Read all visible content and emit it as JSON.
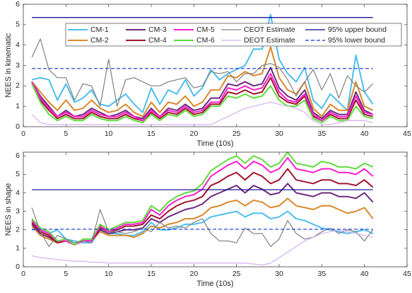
{
  "chart_data": [
    {
      "type": "line",
      "ylabel": "NEES in kinematic",
      "xlabel": "Time (10s)",
      "xlim": [
        0,
        45
      ],
      "xticks": [
        0,
        5,
        10,
        15,
        20,
        25,
        30,
        35,
        40,
        45
      ],
      "ylim": [
        0,
        6
      ],
      "yticks": [
        0,
        1,
        2,
        3,
        4,
        5,
        6
      ],
      "legend": "north-east",
      "grid": false,
      "x": [
        1,
        2,
        3,
        4,
        5,
        6,
        7,
        8,
        9,
        10,
        11,
        12,
        13,
        14,
        15,
        16,
        17,
        18,
        19,
        20,
        21,
        22,
        23,
        24,
        25,
        26,
        27,
        28,
        29,
        30,
        31,
        32,
        33,
        34,
        35,
        36,
        37,
        38,
        39,
        40,
        41
      ],
      "series": [
        {
          "name": "CM-1",
          "color": "#4dbeee",
          "values": [
            2.3,
            2.4,
            2.3,
            1.3,
            2.1,
            1.2,
            1.4,
            1.8,
            1.1,
            1.0,
            1.3,
            1.6,
            1.1,
            0.7,
            1.9,
            1.1,
            1.8,
            1.6,
            2.3,
            1.5,
            1.9,
            2.8,
            2.3,
            2.6,
            2.8,
            3.0,
            3.8,
            3.8,
            5.5,
            3.3,
            2.6,
            2.2,
            2.9,
            1.3,
            0.9,
            1.6,
            1.2,
            0.8,
            3.5,
            1.7,
            1.1
          ]
        },
        {
          "name": "CM-2",
          "color": "#d9892b",
          "values": [
            2.2,
            1.7,
            1.2,
            0.8,
            1.3,
            0.8,
            0.9,
            1.3,
            0.9,
            0.7,
            0.8,
            1.1,
            0.7,
            0.5,
            1.2,
            0.7,
            1.2,
            1.1,
            1.5,
            1.0,
            1.2,
            1.8,
            1.8,
            2.5,
            2.4,
            2.7,
            2.5,
            2.6,
            3.9,
            2.4,
            1.8,
            1.6,
            2.2,
            0.9,
            0.5,
            1.1,
            0.8,
            0.8,
            2.2,
            1.0,
            0.8
          ]
        },
        {
          "name": "CM-3",
          "color": "#6e2a7e",
          "values": [
            2.2,
            1.5,
            1.0,
            0.5,
            0.8,
            0.5,
            0.6,
            0.9,
            0.7,
            0.5,
            0.6,
            0.8,
            0.5,
            0.4,
            0.9,
            0.5,
            0.9,
            0.8,
            1.1,
            0.8,
            0.9,
            1.4,
            1.4,
            2.1,
            2.0,
            2.2,
            2.0,
            2.1,
            2.9,
            1.9,
            1.5,
            1.3,
            1.8,
            0.7,
            0.4,
            0.8,
            0.6,
            0.6,
            1.7,
            0.8,
            0.6
          ]
        },
        {
          "name": "CM-4",
          "color": "#a2142f",
          "values": [
            2.2,
            1.3,
            0.8,
            0.4,
            0.6,
            0.4,
            0.4,
            0.7,
            0.5,
            0.4,
            0.4,
            0.6,
            0.4,
            0.3,
            0.7,
            0.4,
            0.7,
            0.6,
            0.9,
            0.6,
            0.7,
            1.1,
            1.1,
            1.7,
            1.6,
            1.8,
            1.6,
            1.7,
            2.4,
            1.5,
            1.2,
            1.1,
            1.5,
            0.5,
            0.3,
            0.6,
            0.4,
            0.4,
            1.3,
            0.6,
            0.5
          ]
        },
        {
          "name": "CM-5",
          "color": "#ff1fd0",
          "values": [
            2.2,
            1.4,
            0.9,
            0.5,
            0.7,
            0.5,
            0.5,
            0.8,
            0.6,
            0.5,
            0.5,
            0.7,
            0.5,
            0.3,
            0.8,
            0.5,
            0.8,
            0.7,
            1.0,
            0.7,
            0.8,
            1.2,
            1.2,
            1.9,
            1.8,
            2.0,
            1.8,
            1.9,
            2.6,
            1.7,
            1.3,
            1.2,
            1.6,
            0.6,
            0.3,
            0.7,
            0.5,
            0.5,
            1.5,
            0.7,
            0.6
          ]
        },
        {
          "name": "CM-6",
          "color": "#5fdc3c",
          "values": [
            2.1,
            1.2,
            0.6,
            0.3,
            0.5,
            0.3,
            0.3,
            0.6,
            0.4,
            0.3,
            0.3,
            0.5,
            0.3,
            0.2,
            0.6,
            0.3,
            0.6,
            0.5,
            0.8,
            0.5,
            0.6,
            1.0,
            1.0,
            1.5,
            1.4,
            1.6,
            1.4,
            1.5,
            2.0,
            1.3,
            1.0,
            1.0,
            1.3,
            0.4,
            0.2,
            0.5,
            0.3,
            0.3,
            1.0,
            0.5,
            0.4
          ]
        },
        {
          "name": "CEOT Estimate",
          "color": "#808080",
          "values": [
            3.4,
            4.3,
            2.8,
            2.4,
            2.4,
            1.3,
            2.1,
            2.0,
            1.0,
            3.3,
            1.0,
            2.3,
            2.4,
            2.2,
            2.0,
            2.0,
            2.2,
            2.3,
            2.4,
            1.9,
            2.0,
            2.7,
            2.6,
            2.7,
            2.2,
            2.6,
            2.6,
            3.0,
            3.1,
            2.9,
            2.3,
            1.5,
            2.2,
            2.8,
            1.8,
            2.6,
            1.4,
            2.5,
            2.0,
            1.7,
            2.1
          ]
        },
        {
          "name": "DEOT Estimate",
          "color": "#d4b0f2",
          "values": [
            0.6,
            0.2,
            0.1,
            0.1,
            0.1,
            0.1,
            0.1,
            0.1,
            0.1,
            0.1,
            0.1,
            0.1,
            0.1,
            0.1,
            0.1,
            0.1,
            0.1,
            0.1,
            0.1,
            0.1,
            0.1,
            0.1,
            0.3,
            0.5,
            0.7,
            0.9,
            1.0,
            1.1,
            1.2,
            1.1,
            1.0,
            0.9,
            0.7,
            0.3,
            0.1,
            0.1,
            0.2,
            0.3,
            0.3,
            0.3,
            0.2
          ]
        },
        {
          "name": "95% upper bound",
          "color": "#00008b",
          "x": [
            1,
            41
          ],
          "values": [
            5.35,
            5.35
          ]
        },
        {
          "name": "95% lower bound",
          "color": "#1530d0",
          "dash": "dashed",
          "x": [
            1,
            41
          ],
          "values": [
            2.85,
            2.85
          ]
        }
      ]
    },
    {
      "type": "line",
      "ylabel": "NEES in shape",
      "xlabel": "Time (10s)",
      "xlim": [
        0,
        45
      ],
      "xticks": [
        0,
        5,
        10,
        15,
        20,
        25,
        30,
        35,
        40,
        45
      ],
      "ylim": [
        0,
        6.2
      ],
      "yticks": [
        0,
        1,
        2,
        3,
        4,
        5,
        6
      ],
      "grid": false,
      "x": [
        1,
        2,
        3,
        4,
        5,
        6,
        7,
        8,
        9,
        10,
        11,
        12,
        13,
        14,
        15,
        16,
        17,
        18,
        19,
        20,
        21,
        22,
        23,
        24,
        25,
        26,
        27,
        28,
        29,
        30,
        31,
        32,
        33,
        34,
        35,
        36,
        37,
        38,
        39,
        40,
        41
      ],
      "series": [
        {
          "color": "#4dbeee",
          "values": [
            2.0,
            2.0,
            1.8,
            2.0,
            1.5,
            1.4,
            1.3,
            1.3,
            2.0,
            1.8,
            1.8,
            1.7,
            1.7,
            1.9,
            2.4,
            2.0,
            2.0,
            2.1,
            2.3,
            2.3,
            2.4,
            2.7,
            2.8,
            2.9,
            3.0,
            2.7,
            2.9,
            2.9,
            2.6,
            2.7,
            3.0,
            2.6,
            2.5,
            2.3,
            2.1,
            2.0,
            1.9,
            1.8,
            1.9,
            2.0,
            1.8
          ]
        },
        {
          "color": "#d9892b",
          "values": [
            2.2,
            1.7,
            1.5,
            1.3,
            1.4,
            1.2,
            1.4,
            1.4,
            1.9,
            1.7,
            1.7,
            1.7,
            1.6,
            1.8,
            2.2,
            2.1,
            2.3,
            2.4,
            2.6,
            2.6,
            2.8,
            3.2,
            3.3,
            3.5,
            3.6,
            3.3,
            3.6,
            3.5,
            3.2,
            3.3,
            3.7,
            3.3,
            3.2,
            3.1,
            3.3,
            3.3,
            3.1,
            2.9,
            3.0,
            3.2,
            2.6
          ]
        },
        {
          "color": "#6e2a7e",
          "values": [
            2.3,
            1.8,
            1.6,
            1.3,
            1.4,
            1.2,
            1.4,
            1.4,
            2.0,
            1.8,
            1.9,
            2.0,
            2.0,
            2.1,
            2.6,
            2.4,
            2.7,
            2.9,
            3.1,
            3.2,
            3.4,
            3.8,
            4.0,
            4.2,
            4.4,
            4.0,
            4.4,
            4.2,
            3.9,
            4.0,
            4.5,
            4.0,
            3.9,
            3.8,
            4.0,
            4.0,
            3.8,
            3.8,
            3.7,
            4.0,
            3.5
          ]
        },
        {
          "color": "#a2142f",
          "values": [
            2.4,
            1.9,
            1.7,
            1.3,
            1.4,
            1.2,
            1.4,
            1.4,
            2.1,
            1.9,
            2.0,
            2.2,
            2.2,
            2.3,
            2.8,
            2.6,
            3.0,
            3.3,
            3.5,
            3.6,
            3.8,
            4.4,
            4.6,
            4.9,
            5.1,
            4.7,
            5.1,
            4.9,
            4.5,
            4.7,
            5.3,
            4.7,
            4.6,
            4.5,
            4.7,
            4.7,
            4.5,
            4.5,
            4.4,
            4.7,
            4.3
          ]
        },
        {
          "color": "#ff1fd0",
          "values": [
            2.5,
            2.0,
            1.8,
            1.4,
            1.4,
            1.2,
            1.4,
            1.4,
            2.2,
            1.9,
            2.1,
            2.3,
            2.3,
            2.4,
            3.1,
            2.8,
            3.3,
            3.6,
            3.8,
            3.9,
            4.2,
            4.9,
            5.2,
            5.5,
            5.7,
            5.3,
            5.7,
            5.5,
            5.1,
            5.3,
            5.9,
            5.3,
            5.2,
            5.1,
            5.3,
            5.3,
            5.1,
            5.1,
            5.0,
            5.3,
            4.9
          ]
        },
        {
          "color": "#5fdc3c",
          "values": [
            2.6,
            2.1,
            1.9,
            1.4,
            1.5,
            1.2,
            1.5,
            1.5,
            2.3,
            2.0,
            2.2,
            2.4,
            2.4,
            2.5,
            3.3,
            3.0,
            3.5,
            3.8,
            4.0,
            4.1,
            4.5,
            5.2,
            5.5,
            5.8,
            6.0,
            5.6,
            6.0,
            5.8,
            5.4,
            5.6,
            6.2,
            5.6,
            5.5,
            5.4,
            5.7,
            5.6,
            5.4,
            5.4,
            5.3,
            5.6,
            5.4
          ]
        },
        {
          "color": "#808080",
          "values": [
            3.2,
            1.9,
            1.1,
            1.7,
            1.5,
            1.3,
            1.4,
            1.3,
            3.1,
            1.9,
            1.9,
            1.8,
            1.9,
            2.1,
            1.9,
            2.4,
            2.1,
            2.2,
            2.1,
            2.4,
            2.6,
            1.8,
            1.4,
            1.4,
            1.3,
            2.1,
            1.8,
            1.8,
            1.1,
            1.5,
            2.5,
            1.8,
            1.5,
            1.6,
            1.9,
            2.1,
            1.8,
            2.0,
            1.9,
            1.4,
            2.0
          ]
        },
        {
          "color": "#d4b0f2",
          "values": [
            0.6,
            0.5,
            0.45,
            0.4,
            0.35,
            0.3,
            0.3,
            0.25,
            0.25,
            0.2,
            0.2,
            0.2,
            0.2,
            0.2,
            0.2,
            0.2,
            0.2,
            0.2,
            0.2,
            0.2,
            0.2,
            0.2,
            0.2,
            0.2,
            0.2,
            0.2,
            0.15,
            0.1,
            0.2,
            0.5,
            0.8,
            1.1,
            1.4,
            1.6,
            1.8,
            1.9,
            2.0,
            1.9,
            1.8,
            1.7,
            1.6
          ]
        },
        {
          "color": "#00008b",
          "x": [
            1,
            41
          ],
          "values": [
            4.17,
            4.17
          ]
        },
        {
          "color": "#1530d0",
          "dash": "dashed",
          "x": [
            1,
            41
          ],
          "values": [
            2.03,
            2.03
          ]
        }
      ]
    }
  ]
}
